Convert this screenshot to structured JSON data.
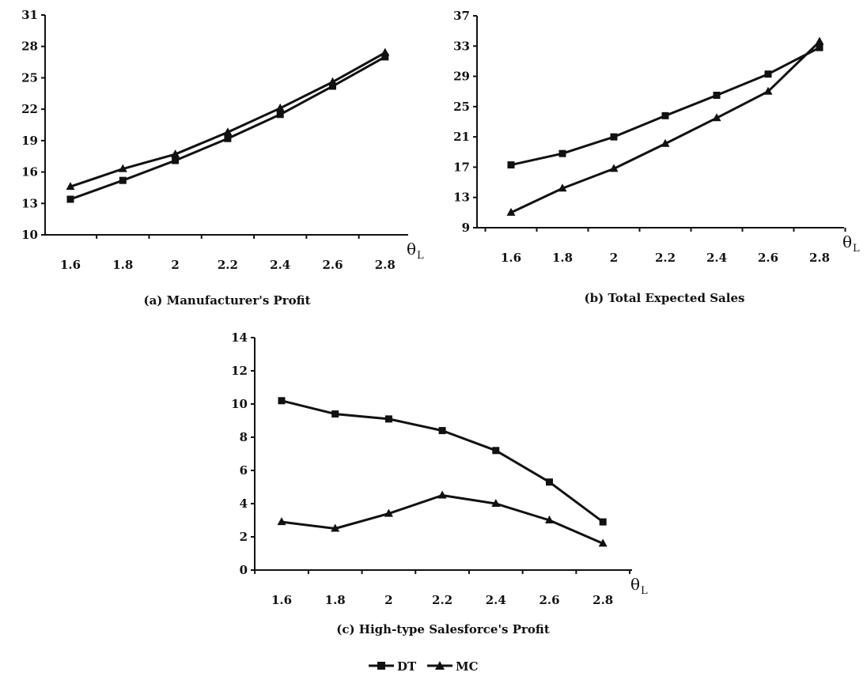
{
  "chart_data": [
    {
      "type": "line",
      "panel": "a",
      "caption": "(a) Manufacturer's Profit",
      "x": [
        1.6,
        1.8,
        2.0,
        2.2,
        2.4,
        2.6,
        2.8
      ],
      "x_tick_labels": [
        "1.6",
        "1.8",
        "2",
        "2.2",
        "2.4",
        "2.6",
        "2.8"
      ],
      "y_tick_labels": [
        "10",
        "13",
        "16",
        "19",
        "22",
        "25",
        "28",
        "31"
      ],
      "ylim": [
        10,
        31
      ],
      "xlabel": "θ",
      "xlabel_sub": "L",
      "series": [
        {
          "name": "DT",
          "marker": "square",
          "values": [
            13.4,
            15.2,
            17.1,
            19.2,
            21.5,
            24.2,
            27.0
          ]
        },
        {
          "name": "MC",
          "marker": "triangle",
          "values": [
            14.6,
            16.3,
            17.7,
            19.8,
            22.1,
            24.6,
            27.4
          ]
        }
      ]
    },
    {
      "type": "line",
      "panel": "b",
      "caption": "(b) Total Expected Sales",
      "x": [
        1.6,
        1.8,
        2.0,
        2.2,
        2.4,
        2.6,
        2.8
      ],
      "x_tick_labels": [
        "1.6",
        "1.8",
        "2",
        "2.2",
        "2.4",
        "2.6",
        "2.8"
      ],
      "y_tick_labels": [
        "9",
        "13",
        "17",
        "21",
        "25",
        "29",
        "33",
        "37"
      ],
      "ylim": [
        9,
        37
      ],
      "xlabel": "θ",
      "xlabel_sub": "L",
      "series": [
        {
          "name": "DT",
          "marker": "square",
          "values": [
            17.3,
            18.8,
            21.0,
            23.8,
            26.5,
            29.3,
            32.8
          ]
        },
        {
          "name": "MC",
          "marker": "triangle",
          "values": [
            11.0,
            14.2,
            16.8,
            20.1,
            23.5,
            27.0,
            33.6
          ]
        }
      ]
    },
    {
      "type": "line",
      "panel": "c",
      "caption": "(c) High-type Salesforce's Profit",
      "x": [
        1.6,
        1.8,
        2.0,
        2.2,
        2.4,
        2.6,
        2.8
      ],
      "x_tick_labels": [
        "1.6",
        "1.8",
        "2",
        "2.2",
        "2.4",
        "2.6",
        "2.8"
      ],
      "y_tick_labels": [
        "0",
        "2",
        "4",
        "6",
        "8",
        "10",
        "12",
        "14"
      ],
      "ylim": [
        0,
        14
      ],
      "xlabel": "θ",
      "xlabel_sub": "L",
      "series": [
        {
          "name": "DT",
          "marker": "square",
          "values": [
            10.2,
            9.4,
            9.1,
            8.4,
            7.2,
            5.3,
            2.9
          ]
        },
        {
          "name": "MC",
          "marker": "triangle",
          "values": [
            2.9,
            2.5,
            3.4,
            4.5,
            4.0,
            3.0,
            1.6
          ]
        }
      ]
    }
  ],
  "legend": {
    "position": "bottom-center",
    "items": [
      {
        "label": "DT",
        "marker": "square"
      },
      {
        "label": "MC",
        "marker": "triangle"
      }
    ]
  },
  "colors": {
    "line": "#111111",
    "background": "#ffffff"
  }
}
